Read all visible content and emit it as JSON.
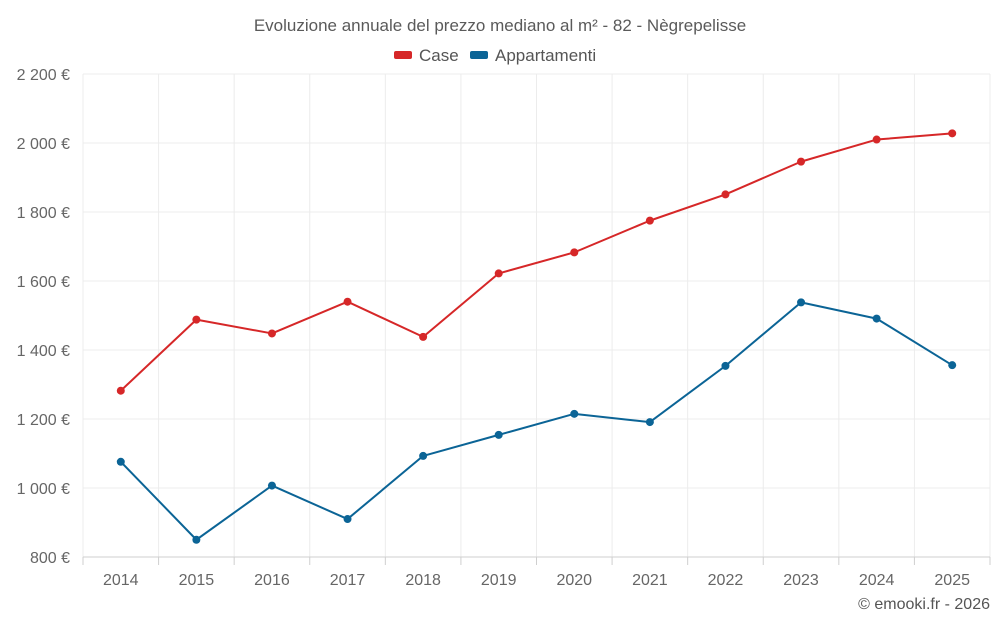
{
  "chart_data": {
    "type": "line",
    "title": "Evoluzione annuale del prezzo mediano al m² - 82 - Nègrepelisse",
    "categories": [
      "2014",
      "2015",
      "2016",
      "2017",
      "2018",
      "2019",
      "2020",
      "2021",
      "2022",
      "2023",
      "2024",
      "2025"
    ],
    "series": [
      {
        "name": "Case",
        "color": "#d62728",
        "values": [
          1282,
          1488,
          1448,
          1540,
          1438,
          1622,
          1683,
          1775,
          1851,
          1946,
          2010,
          2028
        ]
      },
      {
        "name": "Appartamenti",
        "color": "#0b6496",
        "values": [
          1076,
          850,
          1007,
          910,
          1093,
          1154,
          1215,
          1191,
          1354,
          1538,
          1491,
          1356
        ]
      }
    ],
    "y_ticks": [
      {
        "value": 800,
        "label": "800 €"
      },
      {
        "value": 1000,
        "label": "1 000 €"
      },
      {
        "value": 1200,
        "label": "1 200 €"
      },
      {
        "value": 1400,
        "label": "1 400 €"
      },
      {
        "value": 1600,
        "label": "1 600 €"
      },
      {
        "value": 1800,
        "label": "1 800 €"
      },
      {
        "value": 2000,
        "label": "2 000 €"
      },
      {
        "value": 2200,
        "label": "2 200 €"
      }
    ],
    "ylim": [
      800,
      2200
    ],
    "xlabel": "",
    "ylabel": "",
    "legend_position": "top-center",
    "grid": true
  },
  "credit": "© emooki.fr - 2026"
}
